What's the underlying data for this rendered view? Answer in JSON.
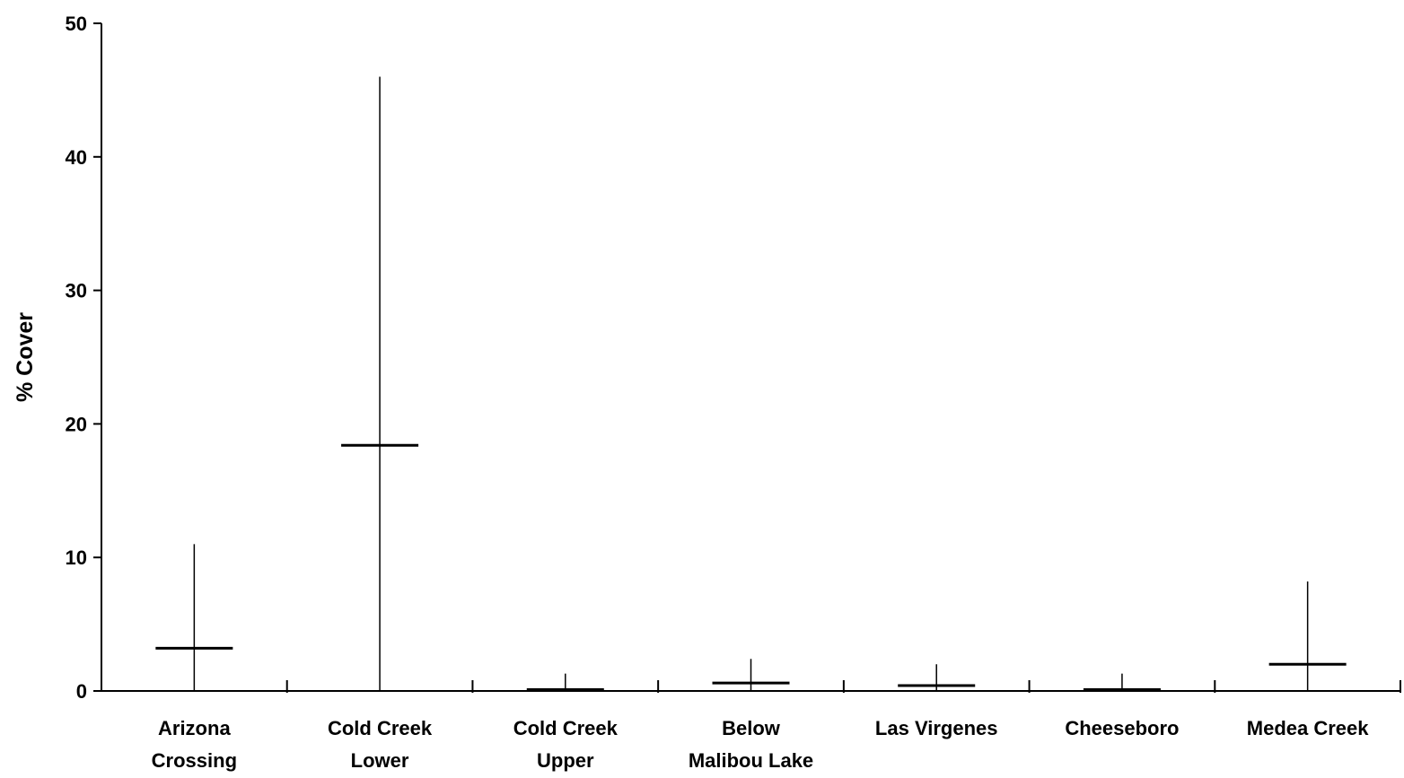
{
  "chart_data": {
    "type": "range",
    "title": "",
    "xlabel": "",
    "ylabel": "% Cover",
    "ylim": [
      0,
      50
    ],
    "yticks": [
      0,
      10,
      20,
      30,
      40,
      50
    ],
    "grid": false,
    "categories": [
      [
        "Arizona",
        "Crossing"
      ],
      [
        "Cold Creek",
        "Lower"
      ],
      [
        "Cold Creek",
        "Upper"
      ],
      [
        "Below",
        "Malibou Lake"
      ],
      [
        "Las Virgenes"
      ],
      [
        "Cheeseboro"
      ],
      [
        "Medea Creek"
      ]
    ],
    "series": [
      {
        "low": [
          0,
          0,
          0,
          0,
          0,
          0,
          0
        ],
        "high": [
          11,
          46,
          1.3,
          2.4,
          2.0,
          1.3,
          8.2
        ],
        "mean": [
          3.2,
          18.4,
          0.1,
          0.6,
          0.4,
          0.1,
          2.0
        ]
      }
    ]
  }
}
